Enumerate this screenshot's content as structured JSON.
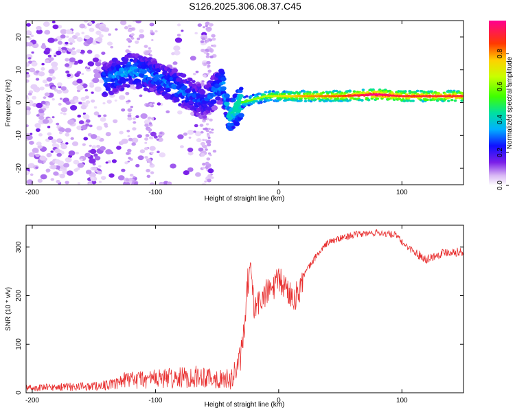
{
  "title": "S126.2025.306.08.37.C45",
  "chart_data": [
    {
      "type": "heatmap",
      "name": "spectrogram",
      "xlabel": "Height of straight line (km)",
      "ylabel": "Frequency (Hz)",
      "xlim": [
        -205,
        150
      ],
      "ylim": [
        -25,
        25
      ],
      "xticks": [
        -200,
        -100,
        0,
        100
      ],
      "yticks": [
        -20,
        -10,
        0,
        10,
        20
      ],
      "colorbar": {
        "label": "Normalized spectral amplitude",
        "range": [
          0.0,
          1.0
        ],
        "ticks": [
          "0.0",
          "0.2",
          "0.4",
          "0.6",
          "0.8"
        ]
      },
      "ridge": {
        "x": [
          -140,
          -120,
          -100,
          -80,
          -60,
          -45,
          -40,
          -35,
          -30,
          -20,
          -10,
          0,
          20,
          50,
          80,
          100,
          120,
          150
        ],
        "freq_hz": [
          7,
          10,
          8,
          4,
          0,
          6,
          -5,
          -2,
          0,
          1,
          2,
          2,
          2,
          2,
          2.5,
          2,
          2,
          2
        ],
        "amplitude": [
          0.3,
          0.35,
          0.3,
          0.3,
          0.25,
          0.35,
          0.4,
          0.45,
          0.5,
          0.55,
          0.6,
          0.65,
          0.75,
          0.8,
          0.95,
          0.85,
          0.85,
          0.85
        ]
      }
    },
    {
      "type": "line",
      "name": "snr",
      "xlabel": "Height of straight line (km)",
      "ylabel": "SNR (10 * v/v)",
      "xlim": [
        -205,
        150
      ],
      "ylim": [
        0,
        345
      ],
      "xticks": [
        -200,
        -100,
        0,
        100
      ],
      "yticks": [
        0,
        100,
        200,
        300
      ],
      "series": [
        {
          "name": "SNR",
          "color": "#e83030",
          "x": [
            -205,
            -180,
            -150,
            -130,
            -120,
            -100,
            -80,
            -60,
            -45,
            -38,
            -32,
            -28,
            -25,
            -22,
            -20,
            -15,
            -10,
            -5,
            0,
            5,
            10,
            15,
            20,
            30,
            40,
            60,
            80,
            95,
            100,
            110,
            120,
            135,
            150
          ],
          "y": [
            10,
            12,
            15,
            20,
            25,
            28,
            30,
            35,
            25,
            30,
            60,
            120,
            230,
            250,
            170,
            190,
            205,
            215,
            230,
            220,
            200,
            200,
            240,
            280,
            310,
            325,
            330,
            325,
            310,
            290,
            275,
            290,
            290
          ]
        }
      ]
    }
  ]
}
